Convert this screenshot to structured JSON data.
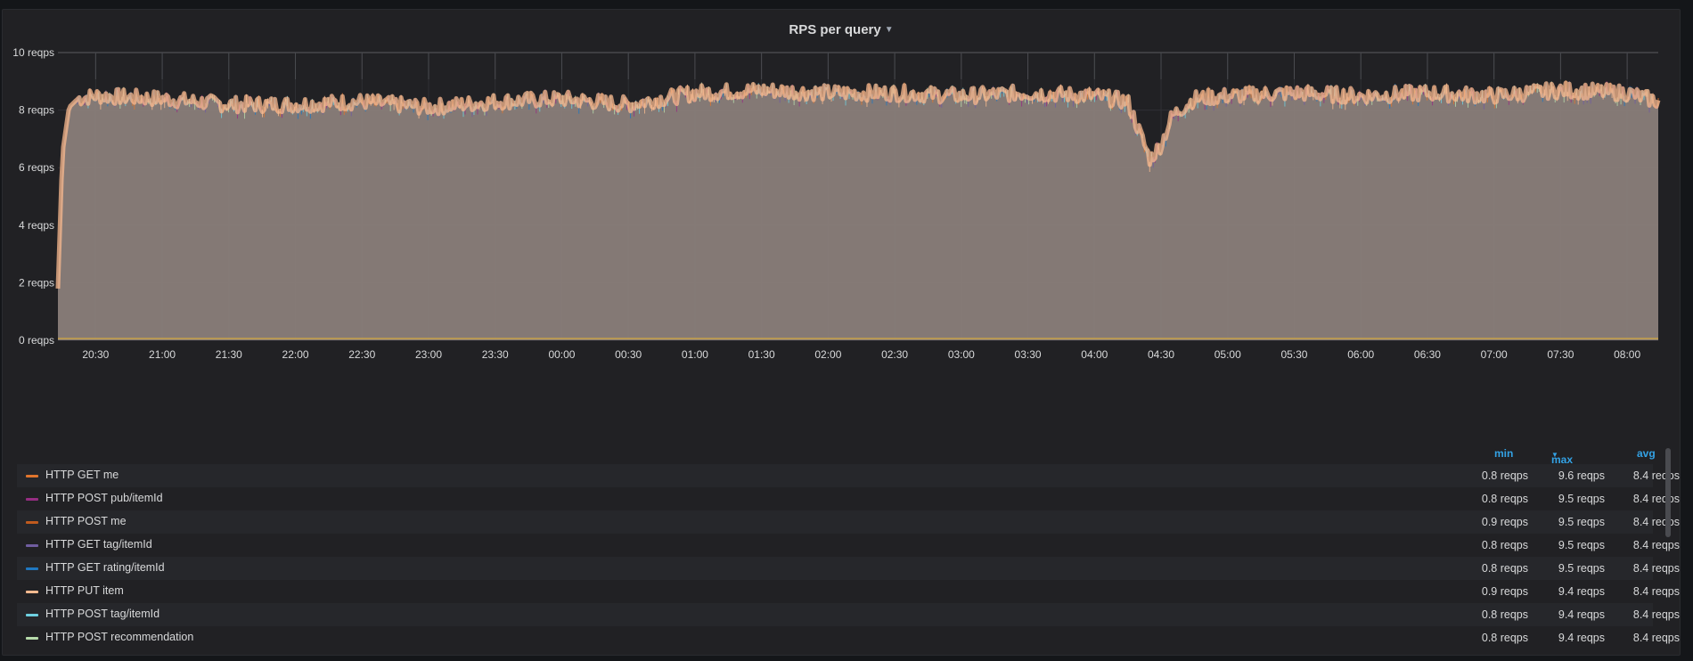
{
  "panel": {
    "title": "RPS per query"
  },
  "chart_data": {
    "type": "area",
    "title": "RPS per query",
    "y_unit": "reqps",
    "ylim": [
      0,
      10
    ],
    "y_ticks": [
      "0 reqps",
      "2 reqps",
      "4 reqps",
      "6 reqps",
      "8 reqps",
      "10 reqps"
    ],
    "x_ticks": [
      "20:30",
      "21:00",
      "21:30",
      "22:00",
      "22:30",
      "23:00",
      "23:30",
      "00:00",
      "00:30",
      "01:00",
      "01:30",
      "02:00",
      "02:30",
      "03:00",
      "03:30",
      "04:00",
      "04:30",
      "05:00",
      "05:30",
      "06:00",
      "06:30",
      "07:00",
      "07:30",
      "08:00"
    ],
    "x_range": [
      "20:13",
      "08:14"
    ],
    "grid": true,
    "aggregate_profile": {
      "x": [
        "20:13",
        "20:15",
        "20:18",
        "20:22",
        "20:30",
        "21:00",
        "21:30",
        "22:00",
        "22:30",
        "23:00",
        "23:30",
        "00:00",
        "00:30",
        "01:00",
        "01:30",
        "02:00",
        "02:30",
        "03:00",
        "03:30",
        "04:00",
        "04:15",
        "04:20",
        "04:25",
        "04:30",
        "04:35",
        "04:45",
        "05:00",
        "05:30",
        "06:00",
        "06:30",
        "07:00",
        "07:30",
        "08:00",
        "08:14"
      ],
      "y": [
        1.8,
        6.5,
        8.1,
        8.4,
        8.5,
        8.4,
        8.2,
        8.2,
        8.3,
        8.1,
        8.3,
        8.4,
        8.2,
        8.6,
        8.7,
        8.6,
        8.6,
        8.5,
        8.6,
        8.5,
        8.3,
        7.3,
        6.3,
        6.8,
        7.8,
        8.4,
        8.5,
        8.6,
        8.5,
        8.6,
        8.5,
        8.7,
        8.6,
        8.3
      ]
    },
    "series": [
      {
        "name": "HTTP GET me",
        "color": "#e0752d"
      },
      {
        "name": "HTTP POST pub/itemId",
        "color": "#962d82"
      },
      {
        "name": "HTTP POST me",
        "color": "#bf5a1e"
      },
      {
        "name": "HTTP GET tag/itemId",
        "color": "#705da0"
      },
      {
        "name": "HTTP GET rating/itemId",
        "color": "#1f78c1"
      },
      {
        "name": "HTTP PUT item",
        "color": "#f9ba8f"
      },
      {
        "name": "HTTP POST tag/itemId",
        "color": "#6ed0e0"
      },
      {
        "name": "HTTP POST recommendation",
        "color": "#b7dbab"
      }
    ]
  },
  "legend": {
    "headers": {
      "min": "min",
      "max": "max",
      "avg": "avg"
    },
    "rows": [
      {
        "name": "HTTP GET me",
        "min": "0.8 reqps",
        "max": "9.6 reqps",
        "avg": "8.4 reqps",
        "color": "#e0752d"
      },
      {
        "name": "HTTP POST pub/itemId",
        "min": "0.8 reqps",
        "max": "9.5 reqps",
        "avg": "8.4 reqps",
        "color": "#962d82"
      },
      {
        "name": "HTTP POST me",
        "min": "0.9 reqps",
        "max": "9.5 reqps",
        "avg": "8.4 reqps",
        "color": "#bf5a1e"
      },
      {
        "name": "HTTP GET tag/itemId",
        "min": "0.8 reqps",
        "max": "9.5 reqps",
        "avg": "8.4 reqps",
        "color": "#705da0"
      },
      {
        "name": "HTTP GET rating/itemId",
        "min": "0.8 reqps",
        "max": "9.5 reqps",
        "avg": "8.4 reqps",
        "color": "#1f78c1"
      },
      {
        "name": "HTTP PUT item",
        "min": "0.9 reqps",
        "max": "9.4 reqps",
        "avg": "8.4 reqps",
        "color": "#f9ba8f"
      },
      {
        "name": "HTTP POST tag/itemId",
        "min": "0.8 reqps",
        "max": "9.4 reqps",
        "avg": "8.4 reqps",
        "color": "#6ed0e0"
      },
      {
        "name": "HTTP POST recommendation",
        "min": "0.8 reqps",
        "max": "9.4 reqps",
        "avg": "8.4 reqps",
        "color": "#b7dbab"
      }
    ]
  }
}
